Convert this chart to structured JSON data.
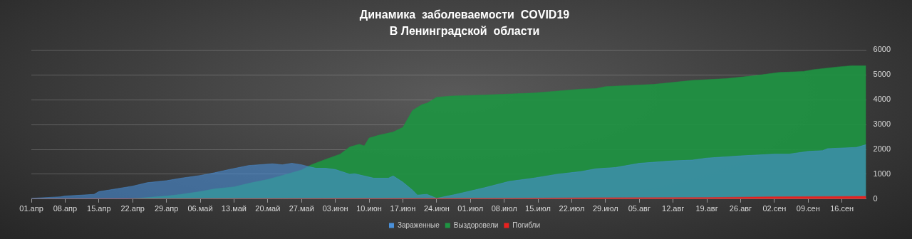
{
  "chart_data": {
    "type": "area",
    "title": "Динамика  заболеваемости  COVID19\nВ Ленинградской  области",
    "series": [
      {
        "name": "Зараженные",
        "color": "#4a90d9",
        "x": [
          "--04-01",
          "--04-07",
          "--04-08",
          "--04-14",
          "--04-15",
          "--04-17",
          "--04-22",
          "--04-25",
          "--04-29",
          "--05-02",
          "--05-06",
          "--05-09",
          "--05-12",
          "--05-16",
          "--05-21",
          "--05-23",
          "--05-25",
          "--05-27",
          "--05-28",
          "--05-30",
          "--06-01",
          "--06-03",
          "--06-06",
          "--06-07",
          "--06-11",
          "--06-14",
          "--06-15",
          "--06-17",
          "--06-19",
          "--06-20",
          "--06-22",
          "--06-24",
          "--06-28",
          "--07-04",
          "--07-09",
          "--07-14",
          "--07-19",
          "--07-24",
          "--07-27",
          "--07-31",
          "--08-05",
          "--08-12",
          "--08-16",
          "--08-19",
          "--08-26",
          "--09-02",
          "--09-05",
          "--09-09",
          "--09-12",
          "--09-13",
          "--09-19",
          "--09-21"
        ],
        "values": [
          30,
          90,
          120,
          190,
          300,
          360,
          520,
          660,
          740,
          840,
          950,
          1060,
          1190,
          1350,
          1420,
          1380,
          1440,
          1380,
          1330,
          1240,
          1240,
          1190,
          1000,
          1020,
          840,
          840,
          930,
          680,
          360,
          160,
          190,
          30,
          190,
          460,
          710,
          840,
          1000,
          1110,
          1220,
          1270,
          1440,
          1540,
          1570,
          1650,
          1740,
          1810,
          1810,
          1920,
          1950,
          2030,
          2080,
          2190
        ]
      },
      {
        "name": "Выздоровели",
        "color": "#1e9442",
        "x": [
          "--04-01",
          "--04-21",
          "--04-29",
          "--05-02",
          "--05-06",
          "--05-09",
          "--05-13",
          "--05-16",
          "--05-20",
          "--05-23",
          "--05-27",
          "--05-29",
          "--06-01",
          "--06-04",
          "--06-06",
          "--06-08",
          "--06-09",
          "--06-10",
          "--06-12",
          "--06-15",
          "--06-17",
          "--06-19",
          "--06-21",
          "--06-22",
          "--06-24",
          "--06-27",
          "--07-04",
          "--07-14",
          "--07-24",
          "--07-27",
          "--07-29",
          "--08-08",
          "--08-16",
          "--08-23",
          "--08-29",
          "--09-03",
          "--09-08",
          "--09-10",
          "--09-15",
          "--09-18",
          "--09-21"
        ],
        "values": [
          0,
          0,
          120,
          190,
          300,
          410,
          490,
          630,
          790,
          950,
          1170,
          1380,
          1600,
          1810,
          2100,
          2210,
          2140,
          2460,
          2570,
          2700,
          2890,
          3570,
          3810,
          3860,
          4100,
          4150,
          4190,
          4270,
          4430,
          4450,
          4530,
          4620,
          4780,
          4850,
          4970,
          5100,
          5140,
          5210,
          5320,
          5370,
          5370
        ]
      },
      {
        "name": "Погибли",
        "color": "#e8211f",
        "x": [
          "--04-01",
          "--05-01",
          "--06-10",
          "--07-10",
          "--07-27",
          "--08-19",
          "--09-01",
          "--09-21"
        ],
        "values": [
          0,
          10,
          20,
          30,
          50,
          60,
          90,
          110
        ]
      }
    ],
    "xlim": [
      "--04-01",
      "--09-21"
    ],
    "xticks": [
      {
        "value": "--04-01",
        "label": "01.апр"
      },
      {
        "value": "--04-08",
        "label": "08.апр"
      },
      {
        "value": "--04-15",
        "label": "15.апр"
      },
      {
        "value": "--04-22",
        "label": "22.апр"
      },
      {
        "value": "--04-29",
        "label": "29.апр"
      },
      {
        "value": "--05-06",
        "label": "06.май"
      },
      {
        "value": "--05-13",
        "label": "13.май"
      },
      {
        "value": "--05-20",
        "label": "20.май"
      },
      {
        "value": "--05-27",
        "label": "27.май"
      },
      {
        "value": "--06-03",
        "label": "03.июн"
      },
      {
        "value": "--06-10",
        "label": "10.июн"
      },
      {
        "value": "--06-17",
        "label": "17.июн"
      },
      {
        "value": "--06-24",
        "label": "24.июн"
      },
      {
        "value": "--07-01",
        "label": "01.июл"
      },
      {
        "value": "--07-08",
        "label": "08.июл"
      },
      {
        "value": "--07-15",
        "label": "15.июл"
      },
      {
        "value": "--07-22",
        "label": "22.июл"
      },
      {
        "value": "--07-29",
        "label": "29.июл"
      },
      {
        "value": "--08-05",
        "label": "05.авг"
      },
      {
        "value": "--08-12",
        "label": "12.авг"
      },
      {
        "value": "--08-19",
        "label": "19.авг"
      },
      {
        "value": "--08-26",
        "label": "26.авг"
      },
      {
        "value": "--09-02",
        "label": "02.сен"
      },
      {
        "value": "--09-09",
        "label": "09.сен"
      },
      {
        "value": "--09-16",
        "label": "16.сен"
      }
    ],
    "ylim": [
      0,
      6000
    ],
    "yticks": [
      0,
      1000,
      2000,
      3000,
      4000,
      5000,
      6000
    ],
    "grid": "y",
    "legend": "bottom",
    "marker": "none"
  }
}
